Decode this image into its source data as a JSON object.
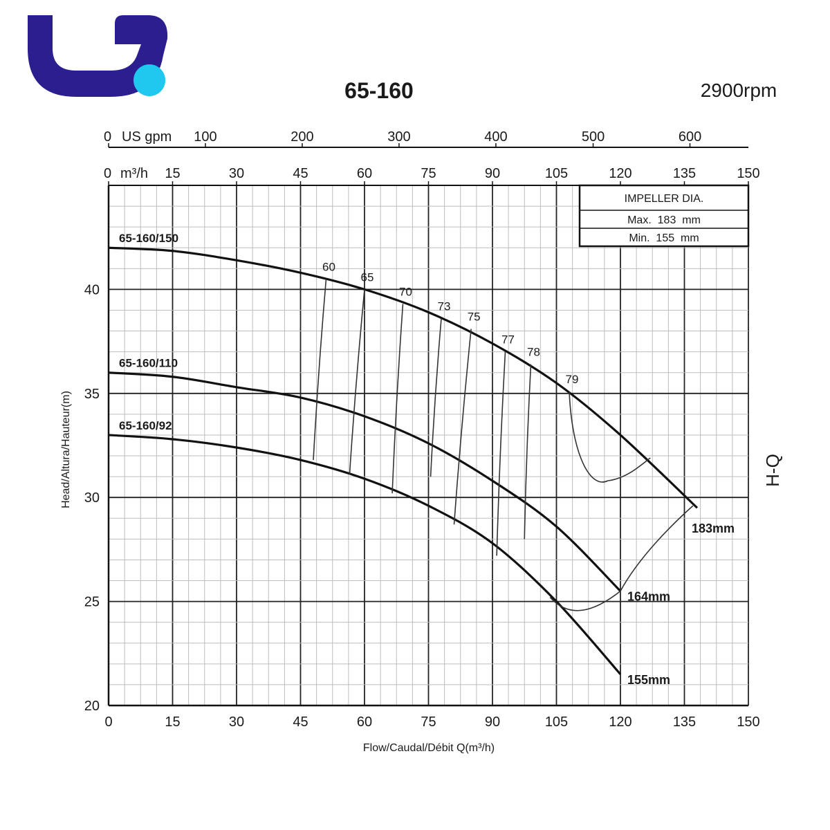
{
  "header": {
    "title": "65-160",
    "speed": "2900rpm",
    "logo_colors": {
      "primary": "#2b1f8f",
      "accent": "#1ec8ee"
    }
  },
  "legend": {
    "title": "IMPELLER DIA.",
    "max": "Max.  183  mm",
    "min": "Min.  155  mm"
  },
  "side_label": "H-Q",
  "chart_data": {
    "type": "line",
    "title": "65-160",
    "xlabel": "Flow/Caudal/Débit Q(m³/h)",
    "ylabel": "Head/Altura/Hauteur(m)",
    "xlim": [
      0,
      150
    ],
    "ylim": [
      20,
      45
    ],
    "x_ticks": [
      0,
      15,
      30,
      45,
      60,
      75,
      90,
      105,
      120,
      135,
      150
    ],
    "y_ticks": [
      20,
      25,
      30,
      35,
      40
    ],
    "top_axis_m3h": {
      "label": "m³/h",
      "ticks": [
        0,
        15,
        30,
        45,
        60,
        75,
        90,
        105,
        120,
        135,
        150
      ]
    },
    "top_axis_gpm": {
      "label": "US gpm",
      "ticks": [
        {
          "label": "0",
          "q": 0
        },
        {
          "label": "100",
          "q": 22.7
        },
        {
          "label": "200",
          "q": 45.4
        },
        {
          "label": "300",
          "q": 68.1
        },
        {
          "label": "400",
          "q": 90.8
        },
        {
          "label": "500",
          "q": 113.6
        },
        {
          "label": "600",
          "q": 136.3
        }
      ]
    },
    "grid": true,
    "series": [
      {
        "name": "65-160/150",
        "end_label": "183mm",
        "x": [
          0,
          15,
          30,
          45,
          60,
          75,
          90,
          105,
          120,
          138
        ],
        "y": [
          42,
          41.85,
          41.4,
          40.8,
          40.0,
          38.9,
          37.4,
          35.5,
          33.0,
          29.5
        ]
      },
      {
        "name": "65-160/110",
        "end_label": "164mm",
        "x": [
          0,
          15,
          30,
          45,
          60,
          75,
          90,
          105,
          120
        ],
        "y": [
          36,
          35.8,
          35.3,
          34.8,
          33.9,
          32.6,
          30.8,
          28.6,
          25.5
        ]
      },
      {
        "name": "65-160/92",
        "end_label": "155mm",
        "x": [
          0,
          15,
          30,
          45,
          60,
          75,
          90,
          105,
          120
        ],
        "y": [
          33,
          32.8,
          32.4,
          31.8,
          30.9,
          29.6,
          27.8,
          25.0,
          21.5
        ]
      }
    ],
    "efficiency_lines": [
      {
        "label": "60",
        "top": [
          51,
          40.5
        ],
        "bottom": [
          48,
          31.8
        ]
      },
      {
        "label": "65",
        "top": [
          60,
          40.0
        ],
        "bottom": [
          56.5,
          31.1
        ]
      },
      {
        "label": "70",
        "top": [
          69,
          39.3
        ],
        "bottom": [
          66.5,
          30.2
        ]
      },
      {
        "label": "73",
        "top": [
          78,
          38.6
        ],
        "bottom": [
          75.5,
          31.0
        ]
      },
      {
        "label": "75",
        "top": [
          85,
          38.1
        ],
        "bottom": [
          81,
          28.7
        ]
      },
      {
        "label": "77",
        "top": [
          93,
          37.0
        ],
        "bottom": [
          91,
          27.2
        ]
      },
      {
        "label": "78",
        "top": [
          99,
          36.4
        ],
        "bottom": [
          97.5,
          28.0
        ]
      },
      {
        "label": "79",
        "top": [
          108,
          35.1
        ],
        "bottom": [
          127,
          31.9
        ]
      }
    ]
  }
}
